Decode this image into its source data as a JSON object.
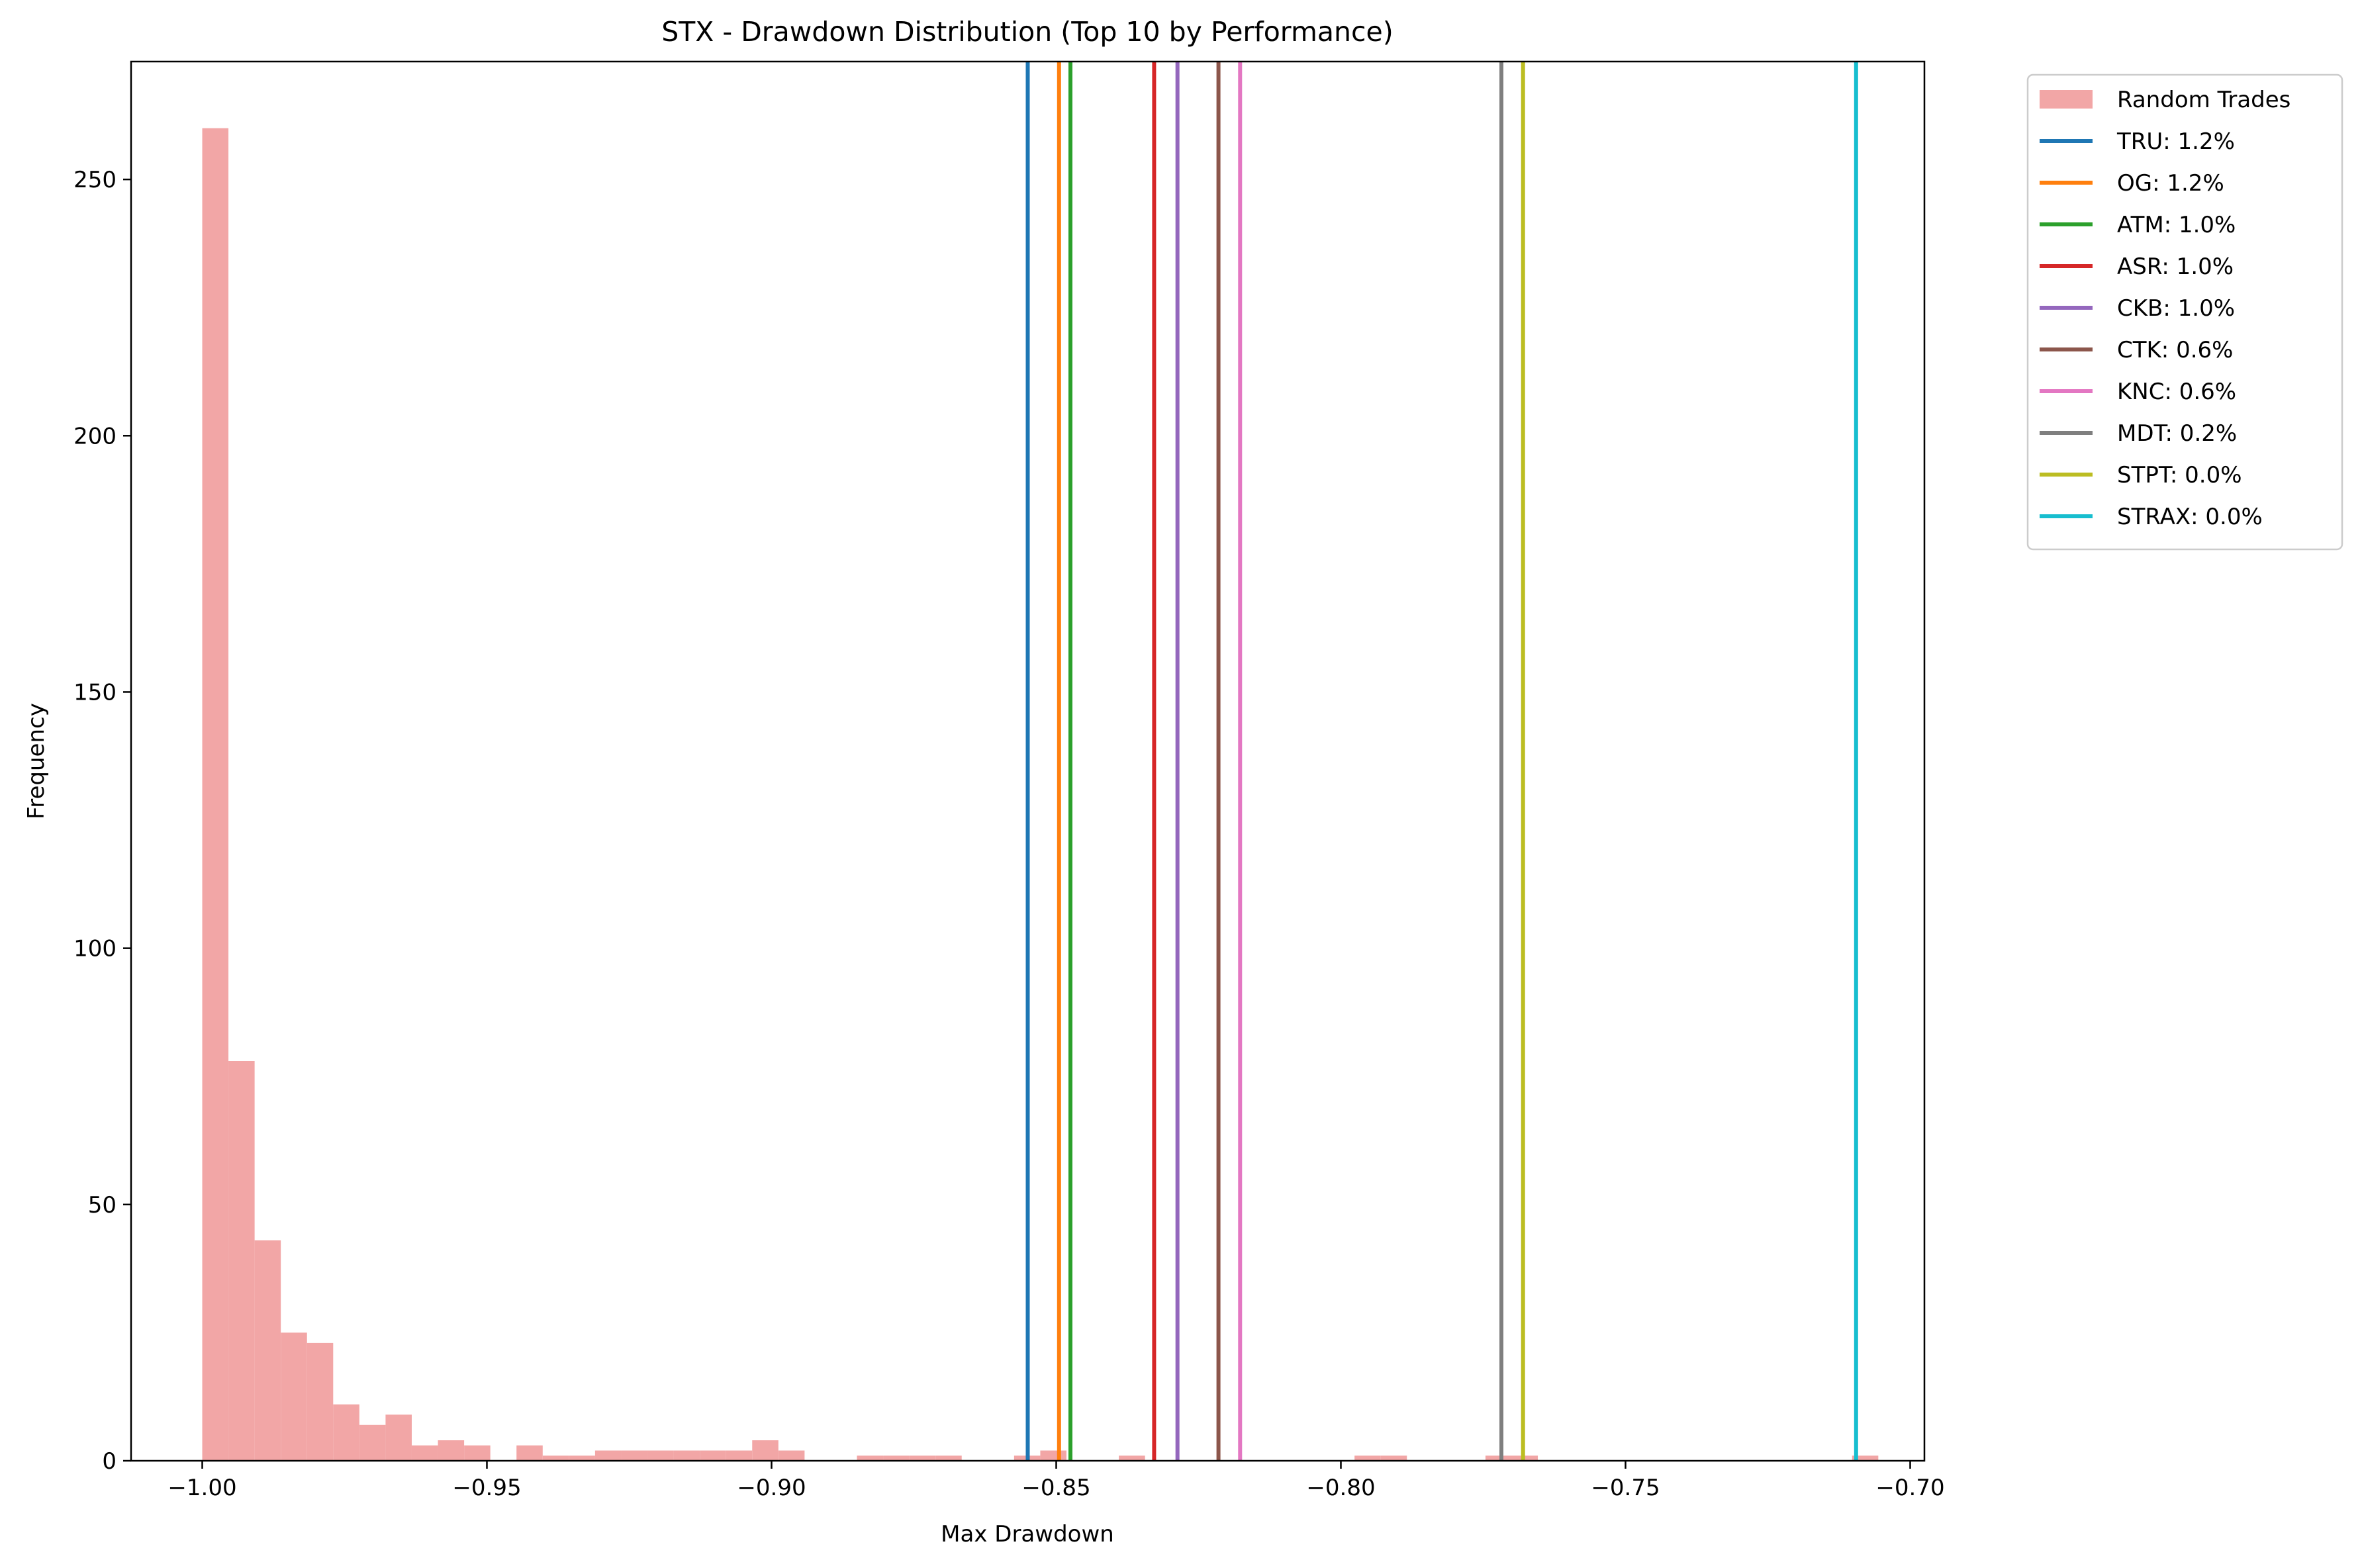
{
  "chart_data": {
    "type": "bar",
    "title": "STX - Drawdown Distribution (Top 10 by Performance)",
    "xlabel": "Max Drawdown",
    "ylabel": "Frequency",
    "xlim": [
      -1.0125,
      -0.6975
    ],
    "ylim": [
      0,
      273
    ],
    "xticks": [
      -1.0,
      -0.95,
      -0.9,
      -0.85,
      -0.8,
      -0.75,
      -0.7
    ],
    "xtick_labels": [
      "−1.00",
      "−0.95",
      "−0.90",
      "−0.85",
      "−0.80",
      "−0.75",
      "−0.70"
    ],
    "yticks": [
      0,
      50,
      100,
      150,
      200,
      250
    ],
    "ytick_labels": [
      "0",
      "50",
      "100",
      "150",
      "200",
      "250"
    ],
    "legend_position": "outside-top-right",
    "histogram": {
      "name": "Random Trades",
      "color": "#f2a6a6",
      "bin_start": -1.0,
      "bin_width": 0.0046,
      "counts": [
        260,
        78,
        43,
        25,
        23,
        11,
        7,
        9,
        3,
        4,
        3,
        0,
        3,
        1,
        1,
        2,
        2,
        2,
        2,
        2,
        2,
        4,
        2,
        0,
        0,
        1,
        1,
        1,
        1,
        0,
        0,
        1,
        2,
        0,
        0,
        1,
        0,
        0,
        0,
        0,
        0,
        0,
        0,
        0,
        1,
        1,
        0,
        0,
        0,
        1,
        1,
        0,
        0,
        0,
        0,
        0,
        0,
        0,
        0,
        0,
        0,
        0,
        0,
        1
      ]
    },
    "series": [
      {
        "name": "TRU: 1.2%",
        "x": -0.855,
        "color": "#1f77b4"
      },
      {
        "name": "OG: 1.2%",
        "x": -0.8495,
        "color": "#ff7f0e"
      },
      {
        "name": "ATM: 1.0%",
        "x": -0.8475,
        "color": "#2ca02c"
      },
      {
        "name": "ASR: 1.0%",
        "x": -0.8328,
        "color": "#d62728"
      },
      {
        "name": "CKB: 1.0%",
        "x": -0.8287,
        "color": "#9467bd"
      },
      {
        "name": "CTK: 0.6%",
        "x": -0.8215,
        "color": "#8c564b"
      },
      {
        "name": "KNC: 0.6%",
        "x": -0.8177,
        "color": "#e377c2"
      },
      {
        "name": "MDT: 0.2%",
        "x": -0.7718,
        "color": "#7f7f7f"
      },
      {
        "name": "STPT: 0.0%",
        "x": -0.768,
        "color": "#bcbd22"
      },
      {
        "name": "STRAX: 0.0%",
        "x": -0.7095,
        "color": "#17becf"
      }
    ]
  }
}
